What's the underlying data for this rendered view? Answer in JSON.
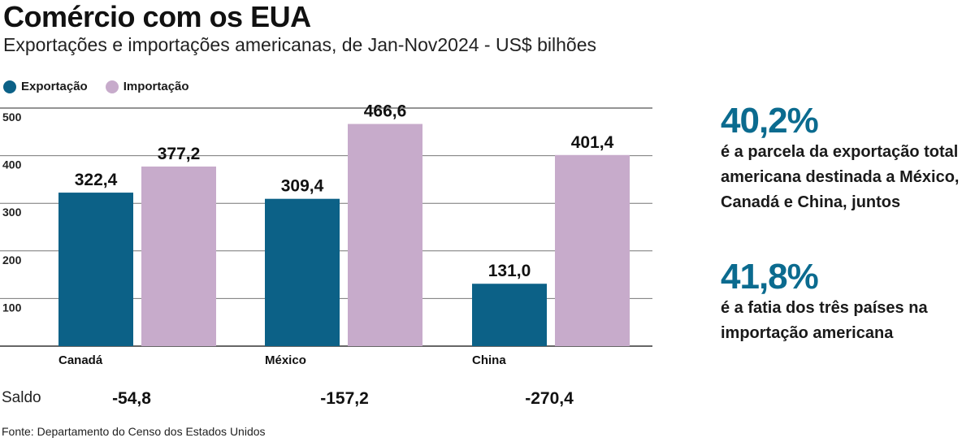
{
  "title": "Comércio com os EUA",
  "subtitle": "Exportações e importações americanas, de Jan-Nov2024 - US$ bilhões",
  "legend": {
    "export_label": "Exportação",
    "import_label": "Importação"
  },
  "colors": {
    "export": "#0c6187",
    "import": "#c7abcb",
    "accent": "#0b6b8f",
    "grid": "#555555"
  },
  "chart_data": {
    "type": "bar",
    "categories": [
      "Canadá",
      "México",
      "China"
    ],
    "series": [
      {
        "name": "Exportação",
        "values": [
          322.4,
          309.4,
          131.0
        ],
        "labels": [
          "322,4",
          "309,4",
          "131,0"
        ]
      },
      {
        "name": "Importação",
        "values": [
          377.2,
          466.6,
          401.4
        ],
        "labels": [
          "377,2",
          "466,6",
          "401,4"
        ]
      }
    ],
    "y_ticks": [
      100,
      200,
      300,
      400,
      500
    ],
    "ylim": [
      0,
      500
    ],
    "grid": true,
    "legend_placement": "top-left",
    "saldo": {
      "label": "Saldo",
      "values": [
        "-54,8",
        "-157,2",
        "-270,4"
      ]
    }
  },
  "stats": [
    {
      "value": "40,2%",
      "text": "é a parcela da exportação total\namericana destinada a México,\nCanadá e China, juntos"
    },
    {
      "value": "41,8%",
      "text": "é a fatia dos três países na\nimportação americana"
    }
  ],
  "source": "Fonte: Departamento do Censo dos Estados Unidos"
}
